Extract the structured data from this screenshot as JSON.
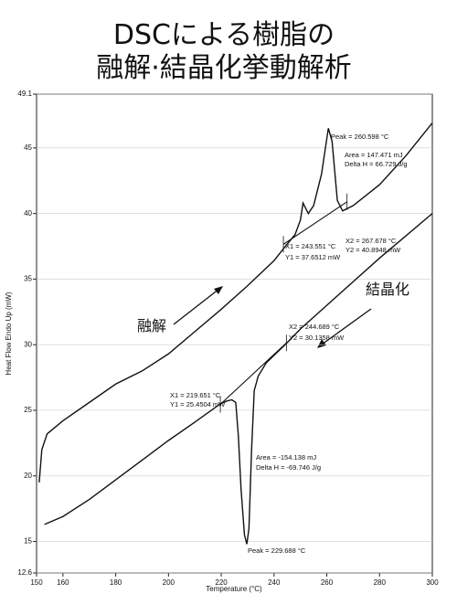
{
  "chart_data": {
    "type": "line",
    "title": [
      "DSCによる樹脂の",
      "融解·結晶化挙動解析"
    ],
    "x_label": "Temperature (°C)",
    "y_label": "Heat Flow Endo Up (mW)",
    "xlim": [
      150,
      300
    ],
    "xticks": [
      150,
      160,
      180,
      200,
      220,
      240,
      260,
      280,
      300
    ],
    "ylim": [
      12.6,
      49.1
    ],
    "yticks": [
      12.6,
      15,
      20,
      25,
      30,
      35,
      40,
      45,
      49.1
    ],
    "series": [
      {
        "name": "融解",
        "color": "#111111",
        "x": [
          151,
          152,
          154,
          160,
          170,
          180,
          190,
          200,
          210,
          220,
          230,
          240,
          243.5,
          248,
          250,
          251,
          253,
          255,
          258,
          260.6,
          262,
          264,
          266,
          270,
          280,
          290,
          300
        ],
        "values": [
          19.5,
          22,
          23.2,
          24.2,
          25.6,
          27.0,
          28.0,
          29.3,
          31,
          32.7,
          34.5,
          36.4,
          37.3,
          38.4,
          39.5,
          40.8,
          40,
          40.6,
          43,
          46.5,
          45.5,
          41,
          40.2,
          40.6,
          42.2,
          44.4,
          46.9
        ]
      },
      {
        "name": "結晶化",
        "color": "#111111",
        "x": [
          153,
          160,
          170,
          180,
          190,
          200,
          210,
          219.7,
          222,
          224,
          225.5,
          226.5,
          227.5,
          228.8,
          229.7,
          230.5,
          231.5,
          232.5,
          234,
          237,
          244.7,
          250,
          260,
          270,
          280,
          290,
          300
        ],
        "values": [
          16.3,
          16.9,
          18.2,
          19.7,
          21.2,
          22.7,
          24.1,
          25.5,
          25.7,
          25.8,
          25.6,
          23,
          19,
          15.5,
          14.8,
          16,
          22,
          26.5,
          27.6,
          28.6,
          30.1,
          31.2,
          33,
          34.8,
          36.6,
          38.3,
          40
        ]
      }
    ],
    "baselines": [
      {
        "x": [
          243.551,
          267.678
        ],
        "values": [
          37.6512,
          40.8948
        ]
      },
      {
        "x": [
          219.651,
          244.689
        ],
        "values": [
          25.4504,
          30.1358
        ]
      }
    ],
    "annotations": [
      "Peak = 260.598 °C",
      "Area = 147.471 mJ",
      "Delta H = 66.729 J/g",
      "X1 = 243.551 °C",
      "Y1 = 37.6512 mW",
      "X2 = 267.678 °C",
      "Y2 = 40.8948 mW",
      "X2 = 244.689 °C",
      "Y2 = 30.1358 mW",
      "X1 = 219.651 °C",
      "Y1 = 25.4504 mW",
      "Area = -154.138 mJ",
      "Delta H = -69.746 J/g",
      "Peak = 229.688 °C"
    ]
  }
}
